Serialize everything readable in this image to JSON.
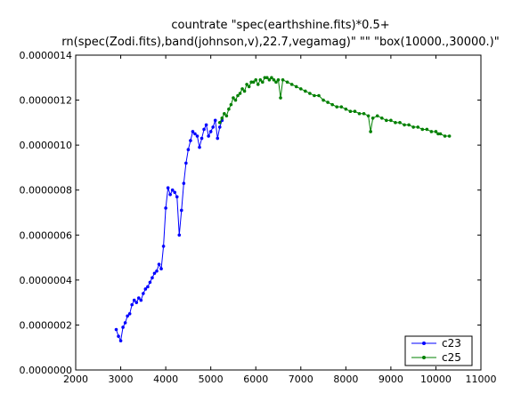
{
  "chart_data": {
    "type": "line",
    "title_lines": [
      "countrate \"spec(earthshine.fits)*0.5+",
      "rn(spec(Zodi.fits),band(johnson,v),22.7,vegamag)\" \"\" \"box(10000.,30000.)\""
    ],
    "xlabel": "",
    "ylabel": "",
    "xlim": [
      2000,
      11000
    ],
    "ylim": [
      0,
      1.4e-06
    ],
    "xticks": [
      2000,
      3000,
      4000,
      5000,
      6000,
      7000,
      8000,
      9000,
      10000,
      11000
    ],
    "yticks": [
      0,
      2e-07,
      4e-07,
      6e-07,
      8e-07,
      1e-06,
      1.2e-06,
      1.4e-06
    ],
    "xtick_labels": [
      "2000",
      "3000",
      "4000",
      "5000",
      "6000",
      "7000",
      "8000",
      "9000",
      "10000",
      "11000"
    ],
    "ytick_labels": [
      "0.0000000",
      "0.0000002",
      "0.0000004",
      "0.0000006",
      "0.0000008",
      "0.0000010",
      "0.0000012",
      "0.0000014"
    ],
    "grid": false,
    "legend": "bottom-right",
    "series": [
      {
        "name": "c23",
        "color": "#0000ff",
        "points": [
          [
            2900,
            1.8e-07
          ],
          [
            2950,
            1.5e-07
          ],
          [
            3000,
            1.3e-07
          ],
          [
            3050,
            1.9e-07
          ],
          [
            3100,
            2.1e-07
          ],
          [
            3150,
            2.4e-07
          ],
          [
            3200,
            2.5e-07
          ],
          [
            3250,
            2.9e-07
          ],
          [
            3300,
            3.1e-07
          ],
          [
            3350,
            3e-07
          ],
          [
            3400,
            3.2e-07
          ],
          [
            3450,
            3.1e-07
          ],
          [
            3500,
            3.4e-07
          ],
          [
            3550,
            3.6e-07
          ],
          [
            3600,
            3.7e-07
          ],
          [
            3650,
            3.9e-07
          ],
          [
            3700,
            4.1e-07
          ],
          [
            3750,
            4.3e-07
          ],
          [
            3800,
            4.4e-07
          ],
          [
            3850,
            4.7e-07
          ],
          [
            3900,
            4.5e-07
          ],
          [
            3950,
            5.5e-07
          ],
          [
            4000,
            7.2e-07
          ],
          [
            4050,
            8.1e-07
          ],
          [
            4100,
            7.8e-07
          ],
          [
            4150,
            8e-07
          ],
          [
            4200,
            7.9e-07
          ],
          [
            4250,
            7.7e-07
          ],
          [
            4300,
            6e-07
          ],
          [
            4350,
            7.1e-07
          ],
          [
            4400,
            8.3e-07
          ],
          [
            4450,
            9.2e-07
          ],
          [
            4500,
            9.8e-07
          ],
          [
            4550,
            1.02e-06
          ],
          [
            4600,
            1.06e-06
          ],
          [
            4650,
            1.05e-06
          ],
          [
            4700,
            1.04e-06
          ],
          [
            4750,
            9.9e-07
          ],
          [
            4800,
            1.03e-06
          ],
          [
            4850,
            1.07e-06
          ],
          [
            4900,
            1.09e-06
          ],
          [
            4950,
            1.04e-06
          ],
          [
            5000,
            1.06e-06
          ],
          [
            5050,
            1.08e-06
          ],
          [
            5100,
            1.11e-06
          ],
          [
            5150,
            1.03e-06
          ],
          [
            5200,
            1.08e-06
          ],
          [
            5250,
            1.11e-06
          ]
        ]
      },
      {
        "name": "c25",
        "color": "#008000",
        "points": [
          [
            5200,
            1.1e-06
          ],
          [
            5250,
            1.12e-06
          ],
          [
            5300,
            1.14e-06
          ],
          [
            5350,
            1.13e-06
          ],
          [
            5400,
            1.16e-06
          ],
          [
            5450,
            1.18e-06
          ],
          [
            5500,
            1.21e-06
          ],
          [
            5550,
            1.2e-06
          ],
          [
            5600,
            1.22e-06
          ],
          [
            5650,
            1.23e-06
          ],
          [
            5700,
            1.25e-06
          ],
          [
            5750,
            1.24e-06
          ],
          [
            5800,
            1.27e-06
          ],
          [
            5850,
            1.26e-06
          ],
          [
            5900,
            1.28e-06
          ],
          [
            5950,
            1.28e-06
          ],
          [
            6000,
            1.29e-06
          ],
          [
            6050,
            1.27e-06
          ],
          [
            6100,
            1.29e-06
          ],
          [
            6150,
            1.28e-06
          ],
          [
            6200,
            1.3e-06
          ],
          [
            6250,
            1.3e-06
          ],
          [
            6300,
            1.29e-06
          ],
          [
            6350,
            1.3e-06
          ],
          [
            6400,
            1.29e-06
          ],
          [
            6450,
            1.28e-06
          ],
          [
            6500,
            1.29e-06
          ],
          [
            6550,
            1.21e-06
          ],
          [
            6600,
            1.29e-06
          ],
          [
            6700,
            1.28e-06
          ],
          [
            6800,
            1.27e-06
          ],
          [
            6900,
            1.26e-06
          ],
          [
            7000,
            1.25e-06
          ],
          [
            7100,
            1.24e-06
          ],
          [
            7200,
            1.23e-06
          ],
          [
            7300,
            1.22e-06
          ],
          [
            7400,
            1.22e-06
          ],
          [
            7500,
            1.2e-06
          ],
          [
            7600,
            1.19e-06
          ],
          [
            7700,
            1.18e-06
          ],
          [
            7800,
            1.17e-06
          ],
          [
            7900,
            1.17e-06
          ],
          [
            8000,
            1.16e-06
          ],
          [
            8100,
            1.15e-06
          ],
          [
            8200,
            1.15e-06
          ],
          [
            8300,
            1.14e-06
          ],
          [
            8400,
            1.14e-06
          ],
          [
            8500,
            1.13e-06
          ],
          [
            8550,
            1.06e-06
          ],
          [
            8600,
            1.12e-06
          ],
          [
            8700,
            1.13e-06
          ],
          [
            8800,
            1.12e-06
          ],
          [
            8900,
            1.11e-06
          ],
          [
            9000,
            1.11e-06
          ],
          [
            9100,
            1.1e-06
          ],
          [
            9200,
            1.1e-06
          ],
          [
            9300,
            1.09e-06
          ],
          [
            9400,
            1.09e-06
          ],
          [
            9500,
            1.08e-06
          ],
          [
            9600,
            1.08e-06
          ],
          [
            9700,
            1.07e-06
          ],
          [
            9800,
            1.07e-06
          ],
          [
            9900,
            1.06e-06
          ],
          [
            10000,
            1.06e-06
          ],
          [
            10050,
            1.05e-06
          ],
          [
            10100,
            1.05e-06
          ],
          [
            10200,
            1.04e-06
          ],
          [
            10300,
            1.04e-06
          ]
        ]
      }
    ]
  }
}
